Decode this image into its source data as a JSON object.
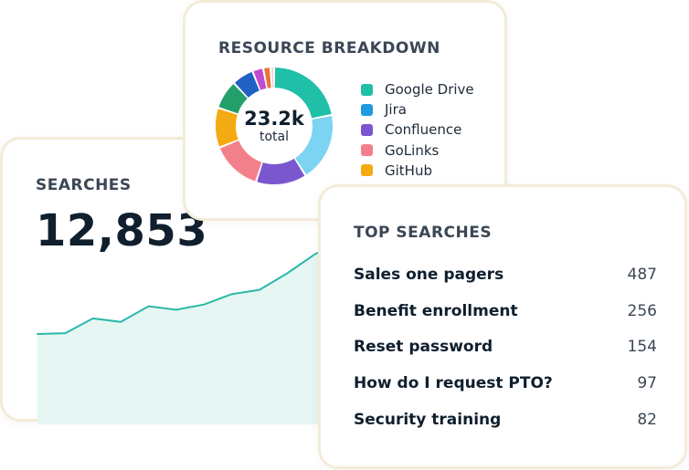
{
  "searches": {
    "title": "SEARCHES",
    "total": "12,853",
    "sparkline": [
      20,
      21,
      38,
      34,
      52,
      48,
      54,
      66,
      71,
      90,
      112,
      128
    ],
    "line_color": "#2ab9a8",
    "fill_color": "#e6f6f3"
  },
  "resources": {
    "title": "RESOURCE BREAKDOWN",
    "total_value": "23.2k",
    "total_label": "total",
    "legend": [
      {
        "label": "Google Drive",
        "color": "#1fbfa8"
      },
      {
        "label": "Jira",
        "color": "#1f9ae0"
      },
      {
        "label": "Confluence",
        "color": "#7a56cf"
      },
      {
        "label": "GoLinks",
        "color": "#f2808a"
      },
      {
        "label": "GitHub",
        "color": "#f4aa12"
      }
    ],
    "slices": [
      {
        "value": 22,
        "color": "#1fbfa8"
      },
      {
        "value": 19,
        "color": "#7dd3f2"
      },
      {
        "value": 14,
        "color": "#7a56cf"
      },
      {
        "value": 14,
        "color": "#f2808a"
      },
      {
        "value": 11,
        "color": "#f4aa12"
      },
      {
        "value": 8,
        "color": "#23a06a"
      },
      {
        "value": 6,
        "color": "#1f62c4"
      },
      {
        "value": 3,
        "color": "#c24bd1"
      },
      {
        "value": 2,
        "color": "#e8743b"
      },
      {
        "value": 1,
        "color": "#f6c9cc"
      }
    ]
  },
  "top_searches": {
    "title": "TOP SEARCHES",
    "items": [
      {
        "query": "Sales one pagers",
        "count": "487"
      },
      {
        "query": "Benefit enrollment",
        "count": "256"
      },
      {
        "query": "Reset password",
        "count": "154"
      },
      {
        "query": "How do I request PTO?",
        "count": "97"
      },
      {
        "query": "Security training",
        "count": "82"
      }
    ]
  }
}
